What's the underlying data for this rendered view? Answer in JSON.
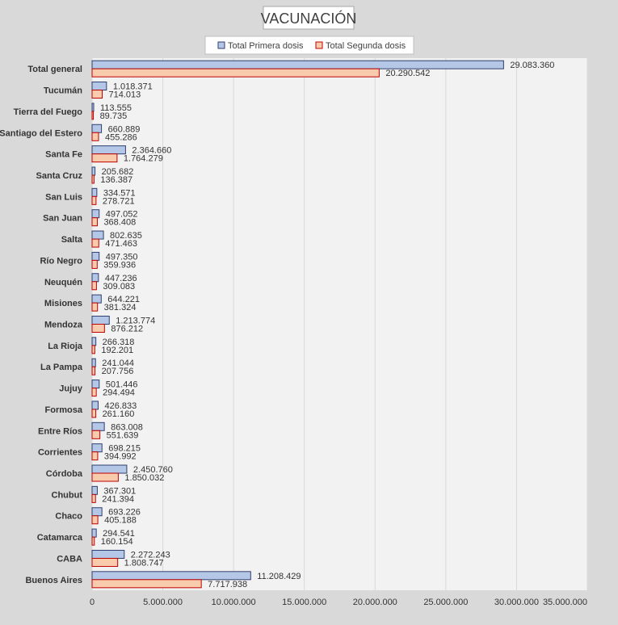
{
  "chart_data": {
    "type": "bar",
    "orientation": "horizontal",
    "title": "VACUNACIÓN",
    "legend_position": "top",
    "grid": true,
    "xlim": [
      0,
      35000000
    ],
    "x_ticks": [
      0,
      5000000,
      10000000,
      15000000,
      20000000,
      25000000,
      30000000,
      35000000
    ],
    "x_tick_labels": [
      "0",
      "5.000.000",
      "10.000.000",
      "15.000.000",
      "20.000.000",
      "25.000.000",
      "30.000.000",
      "35.000.000"
    ],
    "categories": [
      "Total general",
      "Tucumán",
      "Tierra del Fuego",
      "Santiago del Estero",
      "Santa Fe",
      "Santa Cruz",
      "San Luis",
      "San Juan",
      "Salta",
      "Río Negro",
      "Neuquén",
      "Misiones",
      "Mendoza",
      "La Rioja",
      "La Pampa",
      "Jujuy",
      "Formosa",
      "Entre Ríos",
      "Corrientes",
      "Córdoba",
      "Chubut",
      "Chaco",
      "Catamarca",
      "CABA",
      "Buenos Aires"
    ],
    "series": [
      {
        "name": "Total Primera dosis",
        "color": "#b4c7e7",
        "border": "#2f3f6f",
        "values": [
          29083360,
          1018371,
          113555,
          660889,
          2364660,
          205682,
          334571,
          497052,
          802635,
          497350,
          447236,
          644221,
          1213774,
          266318,
          241044,
          501446,
          426833,
          863008,
          698215,
          2450760,
          367301,
          693226,
          294541,
          2272243,
          11208429
        ],
        "labels": [
          "29.083.360",
          "1.018.371",
          "113.555",
          "660.889",
          "2.364.660",
          "205.682",
          "334.571",
          "497.052",
          "802.635",
          "497.350",
          "447.236",
          "644.221",
          "1.213.774",
          "266.318",
          "241.044",
          "501.446",
          "426.833",
          "863.008",
          "698.215",
          "2.450.760",
          "367.301",
          "693.226",
          "294.541",
          "2.272.243",
          "11.208.429"
        ]
      },
      {
        "name": "Total Segunda dosis",
        "color": "#f8cbad",
        "border": "#c00000",
        "values": [
          20290542,
          714013,
          89735,
          455286,
          1764279,
          136387,
          278721,
          368408,
          471463,
          359936,
          309083,
          381324,
          876212,
          192201,
          207756,
          294494,
          261160,
          551639,
          394992,
          1850032,
          241394,
          405188,
          160154,
          1808747,
          7717938
        ],
        "labels": [
          "20.290.542",
          "714.013",
          "89.735",
          "455.286",
          "1.764.279",
          "136.387",
          "278.721",
          "368.408",
          "471.463",
          "359.936",
          "309.083",
          "381.324",
          "876.212",
          "192.201",
          "207.756",
          "294.494",
          "261.160",
          "551.639",
          "394.992",
          "1.850.032",
          "241.394",
          "405.188",
          "160.154",
          "1.808.747",
          "7.717.938"
        ]
      }
    ]
  }
}
